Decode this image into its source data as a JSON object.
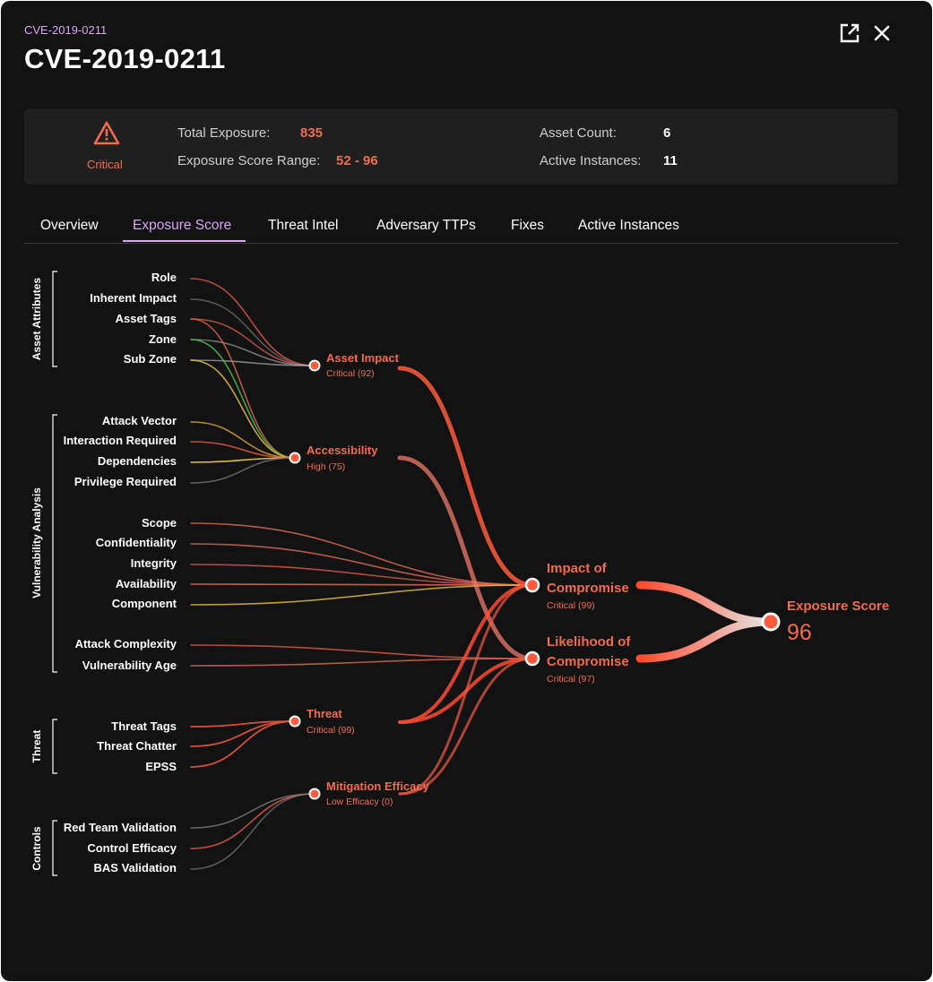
{
  "header": {
    "breadcrumb": "CVE-2019-0211",
    "title": "CVE-2019-0211",
    "open_icon": "external-link-icon",
    "close_icon": "close-icon"
  },
  "summary": {
    "severity_icon": "warning-triangle-icon",
    "severity": "Critical",
    "total_exposure_label": "Total Exposure:",
    "total_exposure_value": "835",
    "score_range_label": "Exposure Score Range:",
    "score_range_value": "52 - 96",
    "asset_count_label": "Asset Count:",
    "asset_count_value": "6",
    "active_instances_label": "Active Instances:",
    "active_instances_value": "11"
  },
  "tabs": [
    {
      "label": "Overview",
      "active": false
    },
    {
      "label": "Exposure Score",
      "active": true
    },
    {
      "label": "Threat Intel",
      "active": false
    },
    {
      "label": "Adversary TTPs",
      "active": false
    },
    {
      "label": "Fixes",
      "active": false
    },
    {
      "label": "Active Instances",
      "active": false
    }
  ],
  "colors": {
    "accent": "#d9a6f2",
    "critical": "#f26b4d",
    "panel_bg": "#121212",
    "summary_bg": "#1f1f1f"
  },
  "groups": [
    {
      "label": "Asset Attributes"
    },
    {
      "label": "Vulnerability Analysis"
    },
    {
      "label": "Threat"
    },
    {
      "label": "Controls"
    }
  ],
  "inputs": [
    {
      "label": "Role"
    },
    {
      "label": "Inherent Impact"
    },
    {
      "label": "Asset Tags"
    },
    {
      "label": "Zone"
    },
    {
      "label": "Sub Zone"
    },
    {
      "label": "Attack Vector"
    },
    {
      "label": "Interaction Required"
    },
    {
      "label": "Dependencies"
    },
    {
      "label": "Privilege Required"
    },
    {
      "label": "Scope"
    },
    {
      "label": "Confidentiality"
    },
    {
      "label": "Integrity"
    },
    {
      "label": "Availability"
    },
    {
      "label": "Component"
    },
    {
      "label": "Attack Complexity"
    },
    {
      "label": "Vulnerability Age"
    },
    {
      "label": "Threat Tags"
    },
    {
      "label": "Threat Chatter"
    },
    {
      "label": "EPSS"
    },
    {
      "label": "Red Team Validation"
    },
    {
      "label": "Control Efficacy"
    },
    {
      "label": "BAS Validation"
    }
  ],
  "nodes": [
    {
      "name": "Asset Impact",
      "sub": "Critical (92)"
    },
    {
      "name": "Accessibility",
      "sub": "High (75)"
    },
    {
      "name": "Threat",
      "sub": "Critical (99)"
    },
    {
      "name": "Mitigation Efficacy",
      "sub": "Low Efficacy (0)"
    },
    {
      "name1": "Impact of",
      "name2": "Compromise",
      "sub": "Critical (99)"
    },
    {
      "name1": "Likelihood of",
      "name2": "Compromise",
      "sub": "Critical (97)"
    }
  ],
  "final": {
    "name": "Exposure Score",
    "value": "96"
  }
}
